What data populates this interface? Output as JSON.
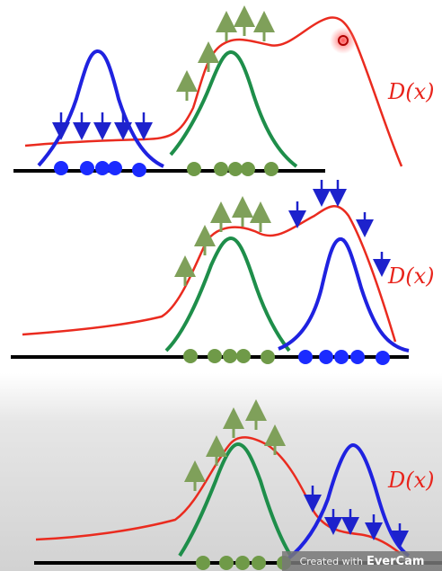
{
  "colors": {
    "density": "#ea2b1f",
    "cluster_a": "#1f22e0",
    "cluster_b": "#1e8e4a",
    "baseline": "#000000",
    "dot_a": "#1b2bff",
    "dot_b": "#6f9a48",
    "up_arrow": "#7fa05a",
    "down_arrow": "#1d22cc",
    "highlight": "#ff2b2b"
  },
  "density_label": "D(x)",
  "watermark": {
    "prefix": "Created with",
    "brand": "EverCam"
  },
  "icons": [
    "up-arrow-icon",
    "down-arrow-icon",
    "highlight-marker-icon"
  ]
}
